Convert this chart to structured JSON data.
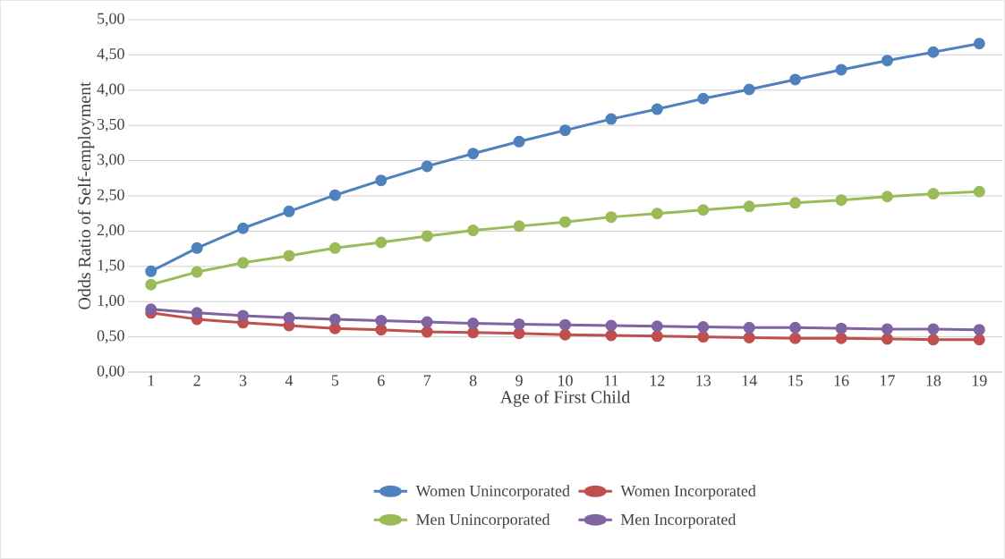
{
  "chart_data": {
    "type": "line",
    "xlabel": "Age of First Child",
    "ylabel": "Odds Ratio of Self-employment",
    "categories": [
      "1",
      "2",
      "3",
      "4",
      "5",
      "6",
      "7",
      "8",
      "9",
      "10",
      "11",
      "12",
      "13",
      "14",
      "15",
      "16",
      "17",
      "18",
      "19"
    ],
    "series": [
      {
        "name": "Women Unincorporated",
        "color": "#4f81bd",
        "values": [
          1.43,
          1.76,
          2.04,
          2.28,
          2.51,
          2.72,
          2.92,
          3.1,
          3.27,
          3.43,
          3.59,
          3.73,
          3.88,
          4.01,
          4.15,
          4.29,
          4.42,
          4.54,
          4.66
        ]
      },
      {
        "name": "Women Incorporated",
        "color": "#c0504d",
        "values": [
          0.84,
          0.75,
          0.7,
          0.66,
          0.62,
          0.6,
          0.57,
          0.56,
          0.55,
          0.53,
          0.52,
          0.51,
          0.5,
          0.49,
          0.48,
          0.48,
          0.47,
          0.46,
          0.46
        ]
      },
      {
        "name": "Men Unincorporated",
        "color": "#9bbb59",
        "values": [
          1.24,
          1.42,
          1.55,
          1.65,
          1.76,
          1.84,
          1.93,
          2.01,
          2.07,
          2.13,
          2.2,
          2.25,
          2.3,
          2.35,
          2.4,
          2.44,
          2.49,
          2.53,
          2.56
        ]
      },
      {
        "name": "Men Incorporated",
        "color": "#8064a2",
        "values": [
          0.89,
          0.84,
          0.8,
          0.77,
          0.75,
          0.73,
          0.71,
          0.69,
          0.68,
          0.67,
          0.66,
          0.65,
          0.64,
          0.63,
          0.63,
          0.62,
          0.61,
          0.61,
          0.6
        ]
      }
    ],
    "ylim": [
      0,
      5
    ],
    "yticks": [
      {
        "value": 0,
        "label": "0,00"
      },
      {
        "value": 0.5,
        "label": "0,50"
      },
      {
        "value": 1,
        "label": "1,00"
      },
      {
        "value": 1.5,
        "label": "1,50"
      },
      {
        "value": 2,
        "label": "2,00"
      },
      {
        "value": 2.5,
        "label": "2,50"
      },
      {
        "value": 3,
        "label": "3,00"
      },
      {
        "value": 3.5,
        "label": "3,50"
      },
      {
        "value": 4,
        "label": "4,00"
      },
      {
        "value": 4.5,
        "label": "4,50"
      },
      {
        "value": 5,
        "label": "5,00"
      }
    ],
    "grid": "y",
    "legend": "bottom",
    "marker": "circle",
    "line_style": "solid"
  }
}
